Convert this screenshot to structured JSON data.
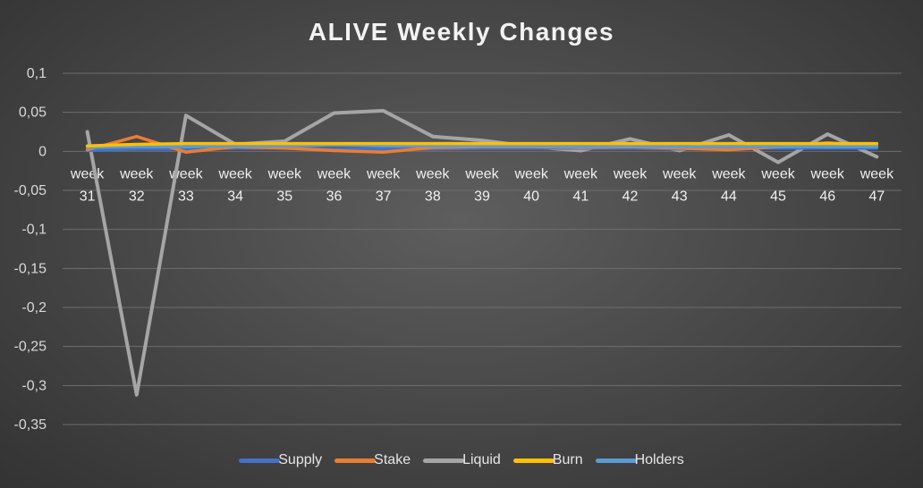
{
  "chart_data": {
    "type": "line",
    "title": "ALIVE Weekly Changes",
    "xlabel": "",
    "ylabel": "",
    "ylim": [
      -0.35,
      0.1
    ],
    "y_ticks": [
      "0,1",
      "0,05",
      "0",
      "-0,05",
      "-0,1",
      "-0,15",
      "-0,2",
      "-0,25",
      "-0,3",
      "-0,35"
    ],
    "y_tick_values": [
      0.1,
      0.05,
      0,
      -0.05,
      -0.1,
      -0.15,
      -0.2,
      -0.25,
      -0.3,
      -0.35
    ],
    "categories": [
      [
        "week",
        "31"
      ],
      [
        "week",
        "32"
      ],
      [
        "week",
        "33"
      ],
      [
        "week",
        "34"
      ],
      [
        "week",
        "35"
      ],
      [
        "week",
        "36"
      ],
      [
        "week",
        "37"
      ],
      [
        "week",
        "38"
      ],
      [
        "week",
        "39"
      ],
      [
        "week",
        "40"
      ],
      [
        "week",
        "41"
      ],
      [
        "week",
        "42"
      ],
      [
        "week",
        "43"
      ],
      [
        "week",
        "44"
      ],
      [
        "week",
        "45"
      ],
      [
        "week",
        "46"
      ],
      [
        "week",
        "47"
      ]
    ],
    "grid": true,
    "legend_position": "bottom",
    "series": [
      {
        "name": "Supply",
        "color": "#4472c4",
        "values": [
          0.001,
          0.003,
          0.003,
          0.004,
          0.004,
          0.003,
          0.003,
          0.003,
          0.004,
          0.004,
          0.004,
          0.004,
          0.003,
          0.004,
          0.004,
          0.004,
          0.004
        ]
      },
      {
        "name": "Stake",
        "color": "#ed7d31",
        "values": [
          0.002,
          0.019,
          -0.001,
          0.006,
          0.004,
          0.001,
          -0.001,
          0.005,
          0.006,
          0.006,
          0.005,
          0.006,
          0.004,
          0.002,
          0.006,
          0.011,
          0.007
        ]
      },
      {
        "name": "Liquid",
        "color": "#a5a5a5",
        "values": [
          0.025,
          -0.312,
          0.046,
          0.009,
          0.013,
          0.049,
          0.052,
          0.019,
          0.014,
          0.006,
          0.001,
          0.016,
          0.001,
          0.021,
          -0.014,
          0.022,
          -0.007
        ]
      },
      {
        "name": "Burn",
        "color": "#ffc000",
        "values": [
          0.007,
          0.009,
          0.01,
          0.01,
          0.01,
          0.01,
          0.01,
          0.01,
          0.01,
          0.01,
          0.01,
          0.01,
          0.01,
          0.01,
          0.01,
          0.01,
          0.01
        ]
      },
      {
        "name": "Holders",
        "color": "#5b9bd5",
        "values": [
          0.005,
          0.006,
          0.006,
          0.007,
          0.007,
          0.008,
          0.007,
          0.007,
          0.007,
          0.007,
          0.006,
          0.007,
          0.006,
          0.006,
          0.006,
          0.006,
          0.006
        ]
      }
    ]
  }
}
